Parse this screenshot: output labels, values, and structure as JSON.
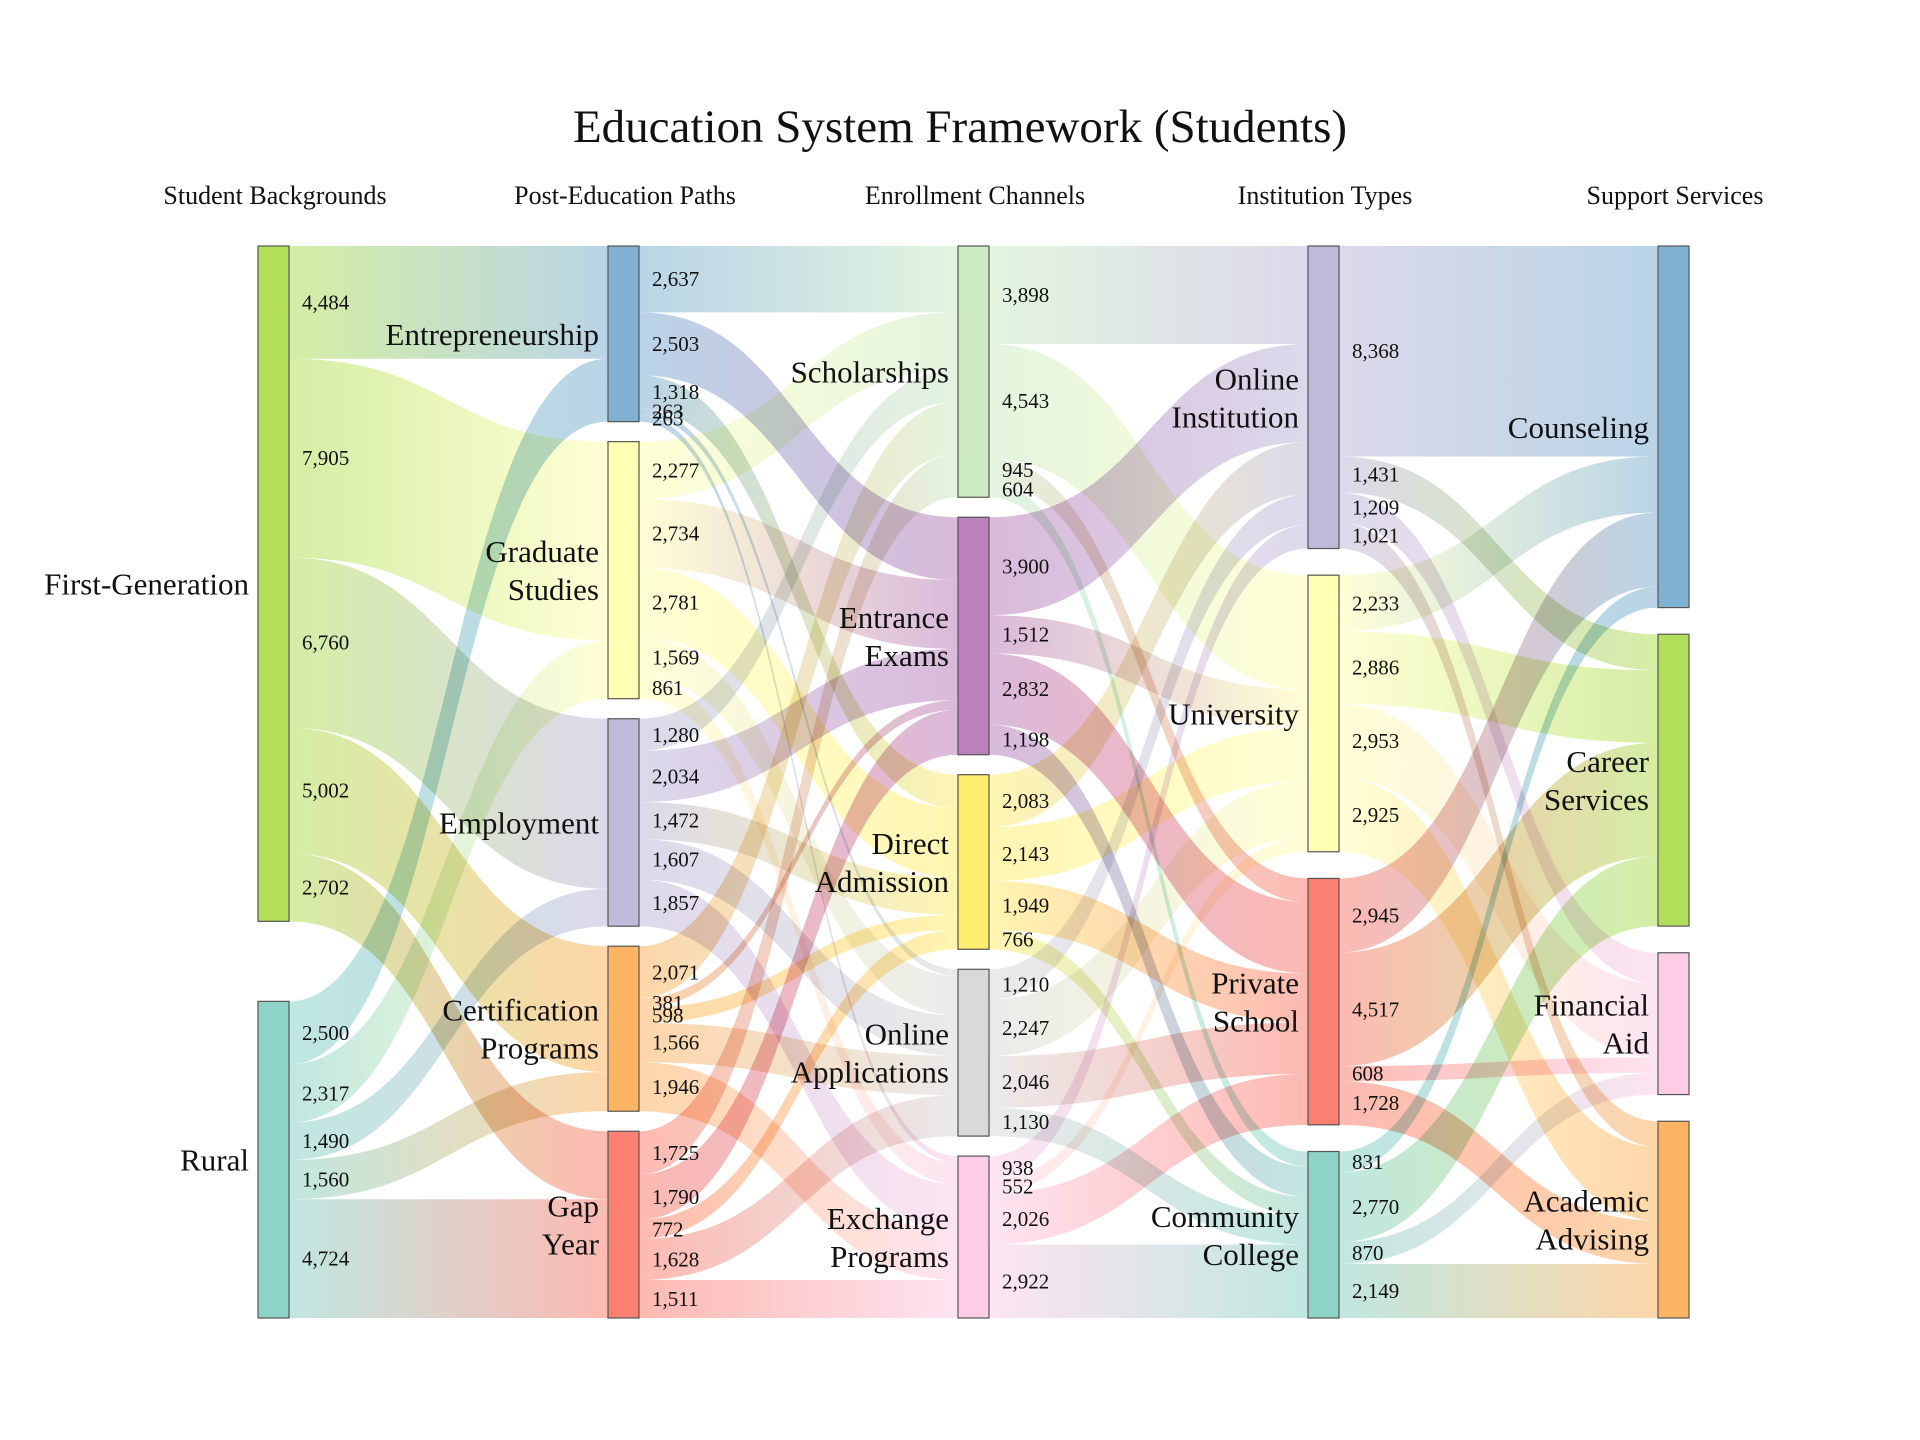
{
  "chart_data": {
    "type": "sankey",
    "title": "Education System Framework (Students)",
    "columns": [
      "Student Backgrounds",
      "Post-Education Paths",
      "Enrollment Channels",
      "Institution Types",
      "Support Services"
    ],
    "nodes": [
      {
        "id": "fg",
        "label": "First-Generation",
        "column": 0,
        "color": "#b2df5a"
      },
      {
        "id": "rural",
        "label": "Rural",
        "column": 0,
        "color": "#8dd3c7"
      },
      {
        "id": "ent",
        "label": "Entrepreneurship",
        "column": 1,
        "color": "#80b1d3"
      },
      {
        "id": "grad",
        "label": "Graduate\nStudies",
        "column": 1,
        "color": "#ffffb3"
      },
      {
        "id": "emp",
        "label": "Employment",
        "column": 1,
        "color": "#bebada"
      },
      {
        "id": "cert",
        "label": "Certification\nPrograms",
        "column": 1,
        "color": "#fdb462"
      },
      {
        "id": "gap",
        "label": "Gap\nYear",
        "column": 1,
        "color": "#fb8072"
      },
      {
        "id": "sch",
        "label": "Scholarships",
        "column": 2,
        "color": "#ccebc5"
      },
      {
        "id": "ee",
        "label": "Entrance\nExams",
        "column": 2,
        "color": "#bc80bd"
      },
      {
        "id": "da",
        "label": "Direct\nAdmission",
        "column": 2,
        "color": "#ffed6f"
      },
      {
        "id": "oa",
        "label": "Online\nApplications",
        "column": 2,
        "color": "#d9d9d9"
      },
      {
        "id": "ex",
        "label": "Exchange\nPrograms",
        "column": 2,
        "color": "#fccde5"
      },
      {
        "id": "oi",
        "label": "Online\nInstitution",
        "column": 3,
        "color": "#bebada"
      },
      {
        "id": "uni",
        "label": "University",
        "column": 3,
        "color": "#ffffb3"
      },
      {
        "id": "ps",
        "label": "Private\nSchool",
        "column": 3,
        "color": "#fb8072"
      },
      {
        "id": "cc",
        "label": "Community\nCollege",
        "column": 3,
        "color": "#8dd3c7"
      },
      {
        "id": "cou",
        "label": "Counseling",
        "column": 4,
        "color": "#80b1d3"
      },
      {
        "id": "cs",
        "label": "Career\nServices",
        "column": 4,
        "color": "#b2df5a"
      },
      {
        "id": "fa",
        "label": "Financial\nAid",
        "column": 4,
        "color": "#fccde5"
      },
      {
        "id": "aa",
        "label": "Academic\nAdvising",
        "column": 4,
        "color": "#fdb462"
      }
    ],
    "links": [
      {
        "source": "fg",
        "target": "ent",
        "value": 4484
      },
      {
        "source": "fg",
        "target": "grad",
        "value": 7905
      },
      {
        "source": "fg",
        "target": "emp",
        "value": 6760
      },
      {
        "source": "fg",
        "target": "cert",
        "value": 5002
      },
      {
        "source": "fg",
        "target": "gap",
        "value": 2702
      },
      {
        "source": "rural",
        "target": "ent",
        "value": 2500
      },
      {
        "source": "rural",
        "target": "grad",
        "value": 2317
      },
      {
        "source": "rural",
        "target": "emp",
        "value": 1490
      },
      {
        "source": "rural",
        "target": "cert",
        "value": 1560
      },
      {
        "source": "rural",
        "target": "gap",
        "value": 4724
      },
      {
        "source": "ent",
        "target": "sch",
        "value": 2637
      },
      {
        "source": "ent",
        "target": "ee",
        "value": 2503
      },
      {
        "source": "ent",
        "target": "da",
        "value": 1318
      },
      {
        "source": "ent",
        "target": "oa",
        "value": 263
      },
      {
        "source": "ent",
        "target": "ex",
        "value": 263
      },
      {
        "source": "grad",
        "target": "sch",
        "value": 2277
      },
      {
        "source": "grad",
        "target": "ee",
        "value": 2734
      },
      {
        "source": "grad",
        "target": "da",
        "value": 2781
      },
      {
        "source": "grad",
        "target": "oa",
        "value": 1569
      },
      {
        "source": "grad",
        "target": "ex",
        "value": 861
      },
      {
        "source": "emp",
        "target": "sch",
        "value": 1280
      },
      {
        "source": "emp",
        "target": "ee",
        "value": 2034
      },
      {
        "source": "emp",
        "target": "da",
        "value": 1472
      },
      {
        "source": "emp",
        "target": "oa",
        "value": 1607
      },
      {
        "source": "emp",
        "target": "ex",
        "value": 1857
      },
      {
        "source": "cert",
        "target": "sch",
        "value": 2071
      },
      {
        "source": "cert",
        "target": "ee",
        "value": 381
      },
      {
        "source": "cert",
        "target": "da",
        "value": 598
      },
      {
        "source": "cert",
        "target": "oa",
        "value": 1566
      },
      {
        "source": "cert",
        "target": "ex",
        "value": 1946
      },
      {
        "source": "gap",
        "target": "sch",
        "value": 1725
      },
      {
        "source": "gap",
        "target": "ee",
        "value": 1790
      },
      {
        "source": "gap",
        "target": "da",
        "value": 772
      },
      {
        "source": "gap",
        "target": "oa",
        "value": 1628
      },
      {
        "source": "gap",
        "target": "ex",
        "value": 1511
      },
      {
        "source": "sch",
        "target": "oi",
        "value": 3898
      },
      {
        "source": "sch",
        "target": "uni",
        "value": 4543
      },
      {
        "source": "sch",
        "target": "ps",
        "value": 945
      },
      {
        "source": "sch",
        "target": "cc",
        "value": 604
      },
      {
        "source": "ee",
        "target": "oi",
        "value": 3900
      },
      {
        "source": "ee",
        "target": "uni",
        "value": 1512
      },
      {
        "source": "ee",
        "target": "ps",
        "value": 2832
      },
      {
        "source": "ee",
        "target": "cc",
        "value": 1198
      },
      {
        "source": "da",
        "target": "oi",
        "value": 2083
      },
      {
        "source": "da",
        "target": "uni",
        "value": 2143
      },
      {
        "source": "da",
        "target": "ps",
        "value": 1949
      },
      {
        "source": "da",
        "target": "cc",
        "value": 766
      },
      {
        "source": "oa",
        "target": "oi",
        "value": 1210
      },
      {
        "source": "oa",
        "target": "uni",
        "value": 2247
      },
      {
        "source": "oa",
        "target": "ps",
        "value": 2046
      },
      {
        "source": "oa",
        "target": "cc",
        "value": 1130
      },
      {
        "source": "ex",
        "target": "oi",
        "value": 938
      },
      {
        "source": "ex",
        "target": "uni",
        "value": 552
      },
      {
        "source": "ex",
        "target": "ps",
        "value": 2026
      },
      {
        "source": "ex",
        "target": "cc",
        "value": 2922
      },
      {
        "source": "oi",
        "target": "cou",
        "value": 8368
      },
      {
        "source": "oi",
        "target": "cs",
        "value": 1431
      },
      {
        "source": "oi",
        "target": "fa",
        "value": 1209
      },
      {
        "source": "oi",
        "target": "aa",
        "value": 1021
      },
      {
        "source": "uni",
        "target": "cou",
        "value": 2233
      },
      {
        "source": "uni",
        "target": "cs",
        "value": 2886
      },
      {
        "source": "uni",
        "target": "fa",
        "value": 2953
      },
      {
        "source": "uni",
        "target": "aa",
        "value": 2925
      },
      {
        "source": "ps",
        "target": "cou",
        "value": 2945
      },
      {
        "source": "ps",
        "target": "cs",
        "value": 4517
      },
      {
        "source": "ps",
        "target": "fa",
        "value": 608
      },
      {
        "source": "ps",
        "target": "aa",
        "value": 1728
      },
      {
        "source": "cc",
        "target": "cou",
        "value": 831
      },
      {
        "source": "cc",
        "target": "cs",
        "value": 2770
      },
      {
        "source": "cc",
        "target": "fa",
        "value": 870
      },
      {
        "source": "cc",
        "target": "aa",
        "value": 2149
      }
    ]
  }
}
